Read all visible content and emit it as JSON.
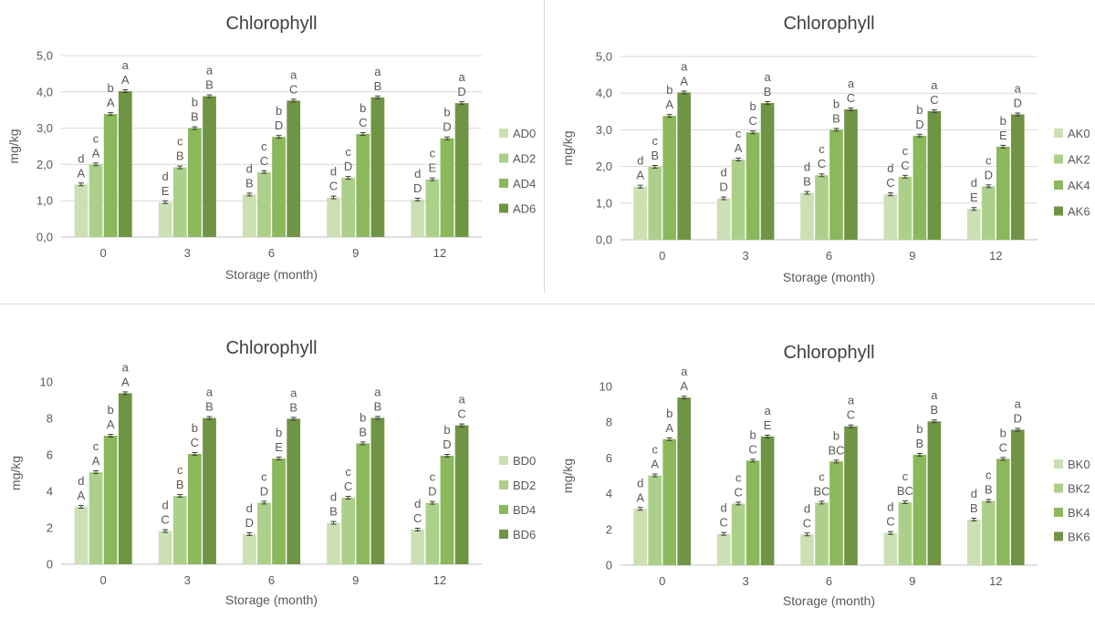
{
  "colors": {
    "series": [
      "#cce0b4",
      "#acd08a",
      "#8ab85a",
      "#6f9444"
    ],
    "axis": "#bfbfbf",
    "grid": "#d9d9d9",
    "text": "#404040",
    "label": "#595959"
  },
  "chart_data": [
    {
      "type": "bar",
      "title": "Chlorophyll",
      "xlabel": "Storage (month)",
      "ylabel": "mg/kg",
      "categories": [
        "0",
        "3",
        "6",
        "9",
        "12"
      ],
      "ylim": [
        0,
        5
      ],
      "yticks": [
        "0,0",
        "1,0",
        "2,0",
        "3,0",
        "4,0",
        "5,0"
      ],
      "grid": true,
      "legend_position": "right",
      "series": [
        {
          "name": "AD0",
          "values": [
            1.45,
            0.96,
            1.17,
            1.09,
            1.03
          ],
          "lower": [
            "d",
            "d",
            "d",
            "d",
            "d"
          ],
          "upper": [
            "A",
            "E",
            "B",
            "C",
            "D"
          ]
        },
        {
          "name": "AD2",
          "values": [
            2.0,
            1.92,
            1.79,
            1.63,
            1.59
          ],
          "lower": [
            "c",
            "c",
            "c",
            "c",
            "c"
          ],
          "upper": [
            "A",
            "B",
            "C",
            "D",
            "E"
          ]
        },
        {
          "name": "AD4",
          "values": [
            3.39,
            3.0,
            2.76,
            2.84,
            2.72
          ],
          "lower": [
            "b",
            "b",
            "b",
            "b",
            "b"
          ],
          "upper": [
            "A",
            "B",
            "D",
            "C",
            "D"
          ]
        },
        {
          "name": "AD6",
          "values": [
            4.02,
            3.88,
            3.76,
            3.85,
            3.69
          ],
          "lower": [
            "a",
            "a",
            "a",
            "a",
            "a"
          ],
          "upper": [
            "A",
            "B",
            "C",
            "B",
            "D"
          ]
        }
      ]
    },
    {
      "type": "bar",
      "title": "Chlorophyll",
      "xlabel": "Storage (month)",
      "ylabel": "mg/kg",
      "categories": [
        "0",
        "3",
        "6",
        "9",
        "12"
      ],
      "ylim": [
        0,
        5
      ],
      "yticks": [
        "0,0",
        "1,0",
        "2,0",
        "3,0",
        "4,0",
        "5,0"
      ],
      "grid": true,
      "legend_position": "right",
      "series": [
        {
          "name": "AK0",
          "values": [
            1.45,
            1.13,
            1.28,
            1.24,
            0.84
          ],
          "lower": [
            "d",
            "d",
            "d",
            "d",
            "d"
          ],
          "upper": [
            "A",
            "D",
            "B",
            "C",
            "E"
          ]
        },
        {
          "name": "AK2",
          "values": [
            1.99,
            2.19,
            1.76,
            1.72,
            1.46
          ],
          "lower": [
            "c",
            "c",
            "c",
            "c",
            "c"
          ],
          "upper": [
            "B",
            "A",
            "C",
            "C",
            "D"
          ]
        },
        {
          "name": "AK4",
          "values": [
            3.38,
            2.93,
            3.0,
            2.84,
            2.54
          ],
          "lower": [
            "b",
            "b",
            "b",
            "b",
            "b"
          ],
          "upper": [
            "A",
            "C",
            "B",
            "D",
            "E"
          ]
        },
        {
          "name": "AK6",
          "values": [
            4.02,
            3.73,
            3.56,
            3.51,
            3.42
          ],
          "lower": [
            "a",
            "a",
            "a",
            "a",
            "a"
          ],
          "upper": [
            "A",
            "B",
            "C",
            "C",
            "D"
          ]
        }
      ]
    },
    {
      "type": "bar",
      "title": "Chlorophyll",
      "xlabel": "Storage (month)",
      "ylabel": "mg/kg",
      "categories": [
        "0",
        "3",
        "6",
        "9",
        "12"
      ],
      "ylim": [
        0,
        10
      ],
      "yticks": [
        "0",
        "2",
        "4",
        "6",
        "8",
        "10"
      ],
      "grid": false,
      "legend_position": "right",
      "series": [
        {
          "name": "BD0",
          "values": [
            3.15,
            1.82,
            1.65,
            2.27,
            1.9
          ],
          "lower": [
            "d",
            "d",
            "d",
            "d",
            "d"
          ],
          "upper": [
            "A",
            "C",
            "D",
            "B",
            "C"
          ]
        },
        {
          "name": "BD2",
          "values": [
            5.05,
            3.75,
            3.38,
            3.65,
            3.37
          ],
          "lower": [
            "c",
            "c",
            "c",
            "c",
            "c"
          ],
          "upper": [
            "A",
            "B",
            "D",
            "C",
            "D"
          ]
        },
        {
          "name": "BD4",
          "values": [
            7.05,
            6.05,
            5.8,
            6.63,
            5.95
          ],
          "lower": [
            "b",
            "b",
            "b",
            "b",
            "b"
          ],
          "upper": [
            "A",
            "C",
            "E",
            "B",
            "D"
          ]
        },
        {
          "name": "BD6",
          "values": [
            9.38,
            8.02,
            7.98,
            8.03,
            7.62
          ],
          "lower": [
            "a",
            "a",
            "a",
            "a",
            "a"
          ],
          "upper": [
            "A",
            "B",
            "B",
            "B",
            "C"
          ]
        }
      ]
    },
    {
      "type": "bar",
      "title": "Chlorophyll",
      "xlabel": "Storage (month)",
      "ylabel": "mg/kg",
      "categories": [
        "0",
        "3",
        "6",
        "9",
        "12"
      ],
      "ylim": [
        0,
        10
      ],
      "yticks": [
        "0",
        "2",
        "4",
        "6",
        "8",
        "10"
      ],
      "grid": false,
      "legend_position": "right",
      "series": [
        {
          "name": "BK0",
          "values": [
            3.15,
            1.75,
            1.72,
            1.8,
            2.55
          ],
          "lower": [
            "d",
            "d",
            "d",
            "d",
            "d"
          ],
          "upper": [
            "A",
            "C",
            "C",
            "C",
            "B"
          ]
        },
        {
          "name": "BK2",
          "values": [
            5.02,
            3.45,
            3.5,
            3.52,
            3.6
          ],
          "lower": [
            "c",
            "c",
            "c",
            "c",
            "c"
          ],
          "upper": [
            "A",
            "C",
            "BC",
            "BC",
            "B"
          ]
        },
        {
          "name": "BK4",
          "values": [
            7.05,
            5.85,
            5.8,
            6.18,
            5.95
          ],
          "lower": [
            "b",
            "b",
            "b",
            "b",
            "b"
          ],
          "upper": [
            "A",
            "C",
            "BC",
            "B",
            "C"
          ]
        },
        {
          "name": "BK6",
          "values": [
            9.38,
            7.2,
            7.77,
            8.05,
            7.58
          ],
          "lower": [
            "a",
            "a",
            "a",
            "a",
            "a"
          ],
          "upper": [
            "A",
            "E",
            "C",
            "B",
            "D"
          ]
        }
      ]
    }
  ]
}
